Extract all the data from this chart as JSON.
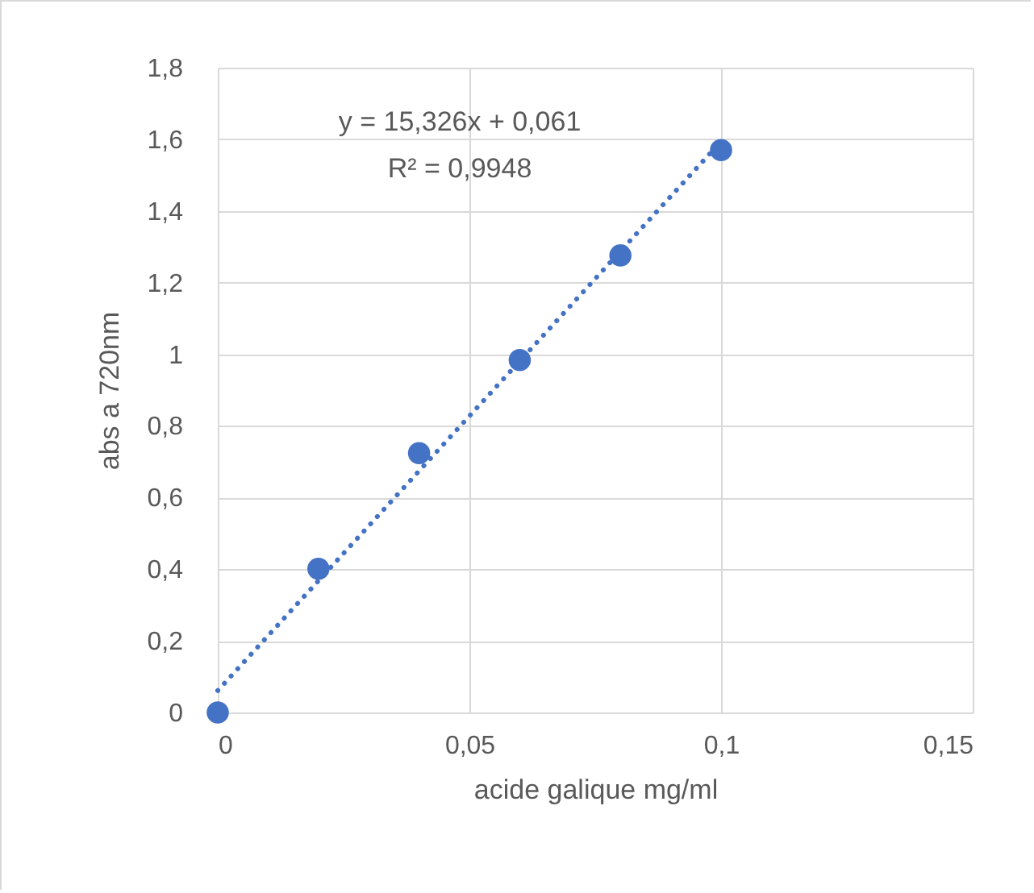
{
  "chart_data": {
    "type": "scatter",
    "xlabel": "acide galique mg/ml",
    "ylabel": "abs a 720nm",
    "annotations": [
      "y = 15,326x + 0,061",
      "R² = 0,9948"
    ],
    "xlim": [
      0,
      0.15
    ],
    "xticks": [
      0,
      {
        "value": 0.05,
        "label": "0,05"
      },
      {
        "value": 0.1,
        "label": "0,1"
      },
      {
        "value": 0.15,
        "label": "0,15"
      }
    ],
    "ylim": [
      0,
      1.8
    ],
    "yticks": [
      0,
      {
        "value": 0.2,
        "label": "0,2"
      },
      {
        "value": 0.4,
        "label": "0,4"
      },
      {
        "value": 0.6,
        "label": "0,6"
      },
      {
        "value": 0.8,
        "label": "0,8"
      },
      1,
      {
        "value": 1.2,
        "label": "1,2"
      },
      {
        "value": 1.4,
        "label": "1,4"
      },
      {
        "value": 1.6,
        "label": "1,6"
      },
      {
        "value": 1.8,
        "label": "1,8"
      }
    ],
    "grid": true,
    "series": [
      {
        "color": "#4472c4",
        "marker": "circle",
        "x": [
          0,
          0.02,
          0.04,
          0.06,
          0.08,
          0.1
        ],
        "values": [
          0,
          0.401,
          0.724,
          0.984,
          1.276,
          1.57
        ]
      },
      {
        "type": "line",
        "color": "#4472c4",
        "line_style": "dotted",
        "marker": "none",
        "x": [
          0,
          0.1
        ],
        "values": [
          0.061,
          1.594
        ]
      }
    ]
  }
}
